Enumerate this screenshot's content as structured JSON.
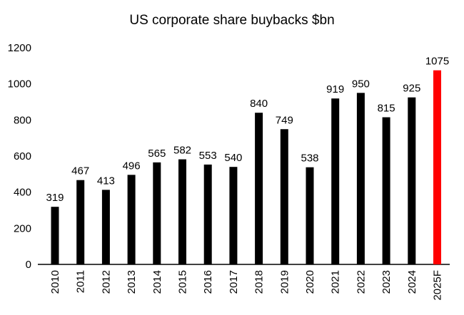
{
  "chart_data": {
    "type": "bar",
    "title": "US corporate share buybacks $bn",
    "xlabel": "",
    "ylabel": "",
    "ylim": [
      0,
      1200
    ],
    "yticks": [
      0,
      200,
      400,
      600,
      800,
      1000,
      1200
    ],
    "grid": false,
    "categories": [
      "2010",
      "2011",
      "2012",
      "2013",
      "2014",
      "2015",
      "2016",
      "2017",
      "2018",
      "2019",
      "2020",
      "2021",
      "2022",
      "2023",
      "2024",
      "2025F"
    ],
    "values": [
      319,
      467,
      413,
      496,
      565,
      582,
      553,
      540,
      840,
      749,
      538,
      919,
      950,
      815,
      925,
      1075
    ],
    "data_labels": [
      "319",
      "467",
      "413",
      "496",
      "565",
      "582",
      "553",
      "540",
      "840",
      "749",
      "538",
      "919",
      "950",
      "815",
      "925",
      "1075"
    ],
    "colors": {
      "bar": "#000000",
      "forecast_bar": "#ff0000",
      "axis": "#000000"
    },
    "highlight_category": "2025F"
  }
}
